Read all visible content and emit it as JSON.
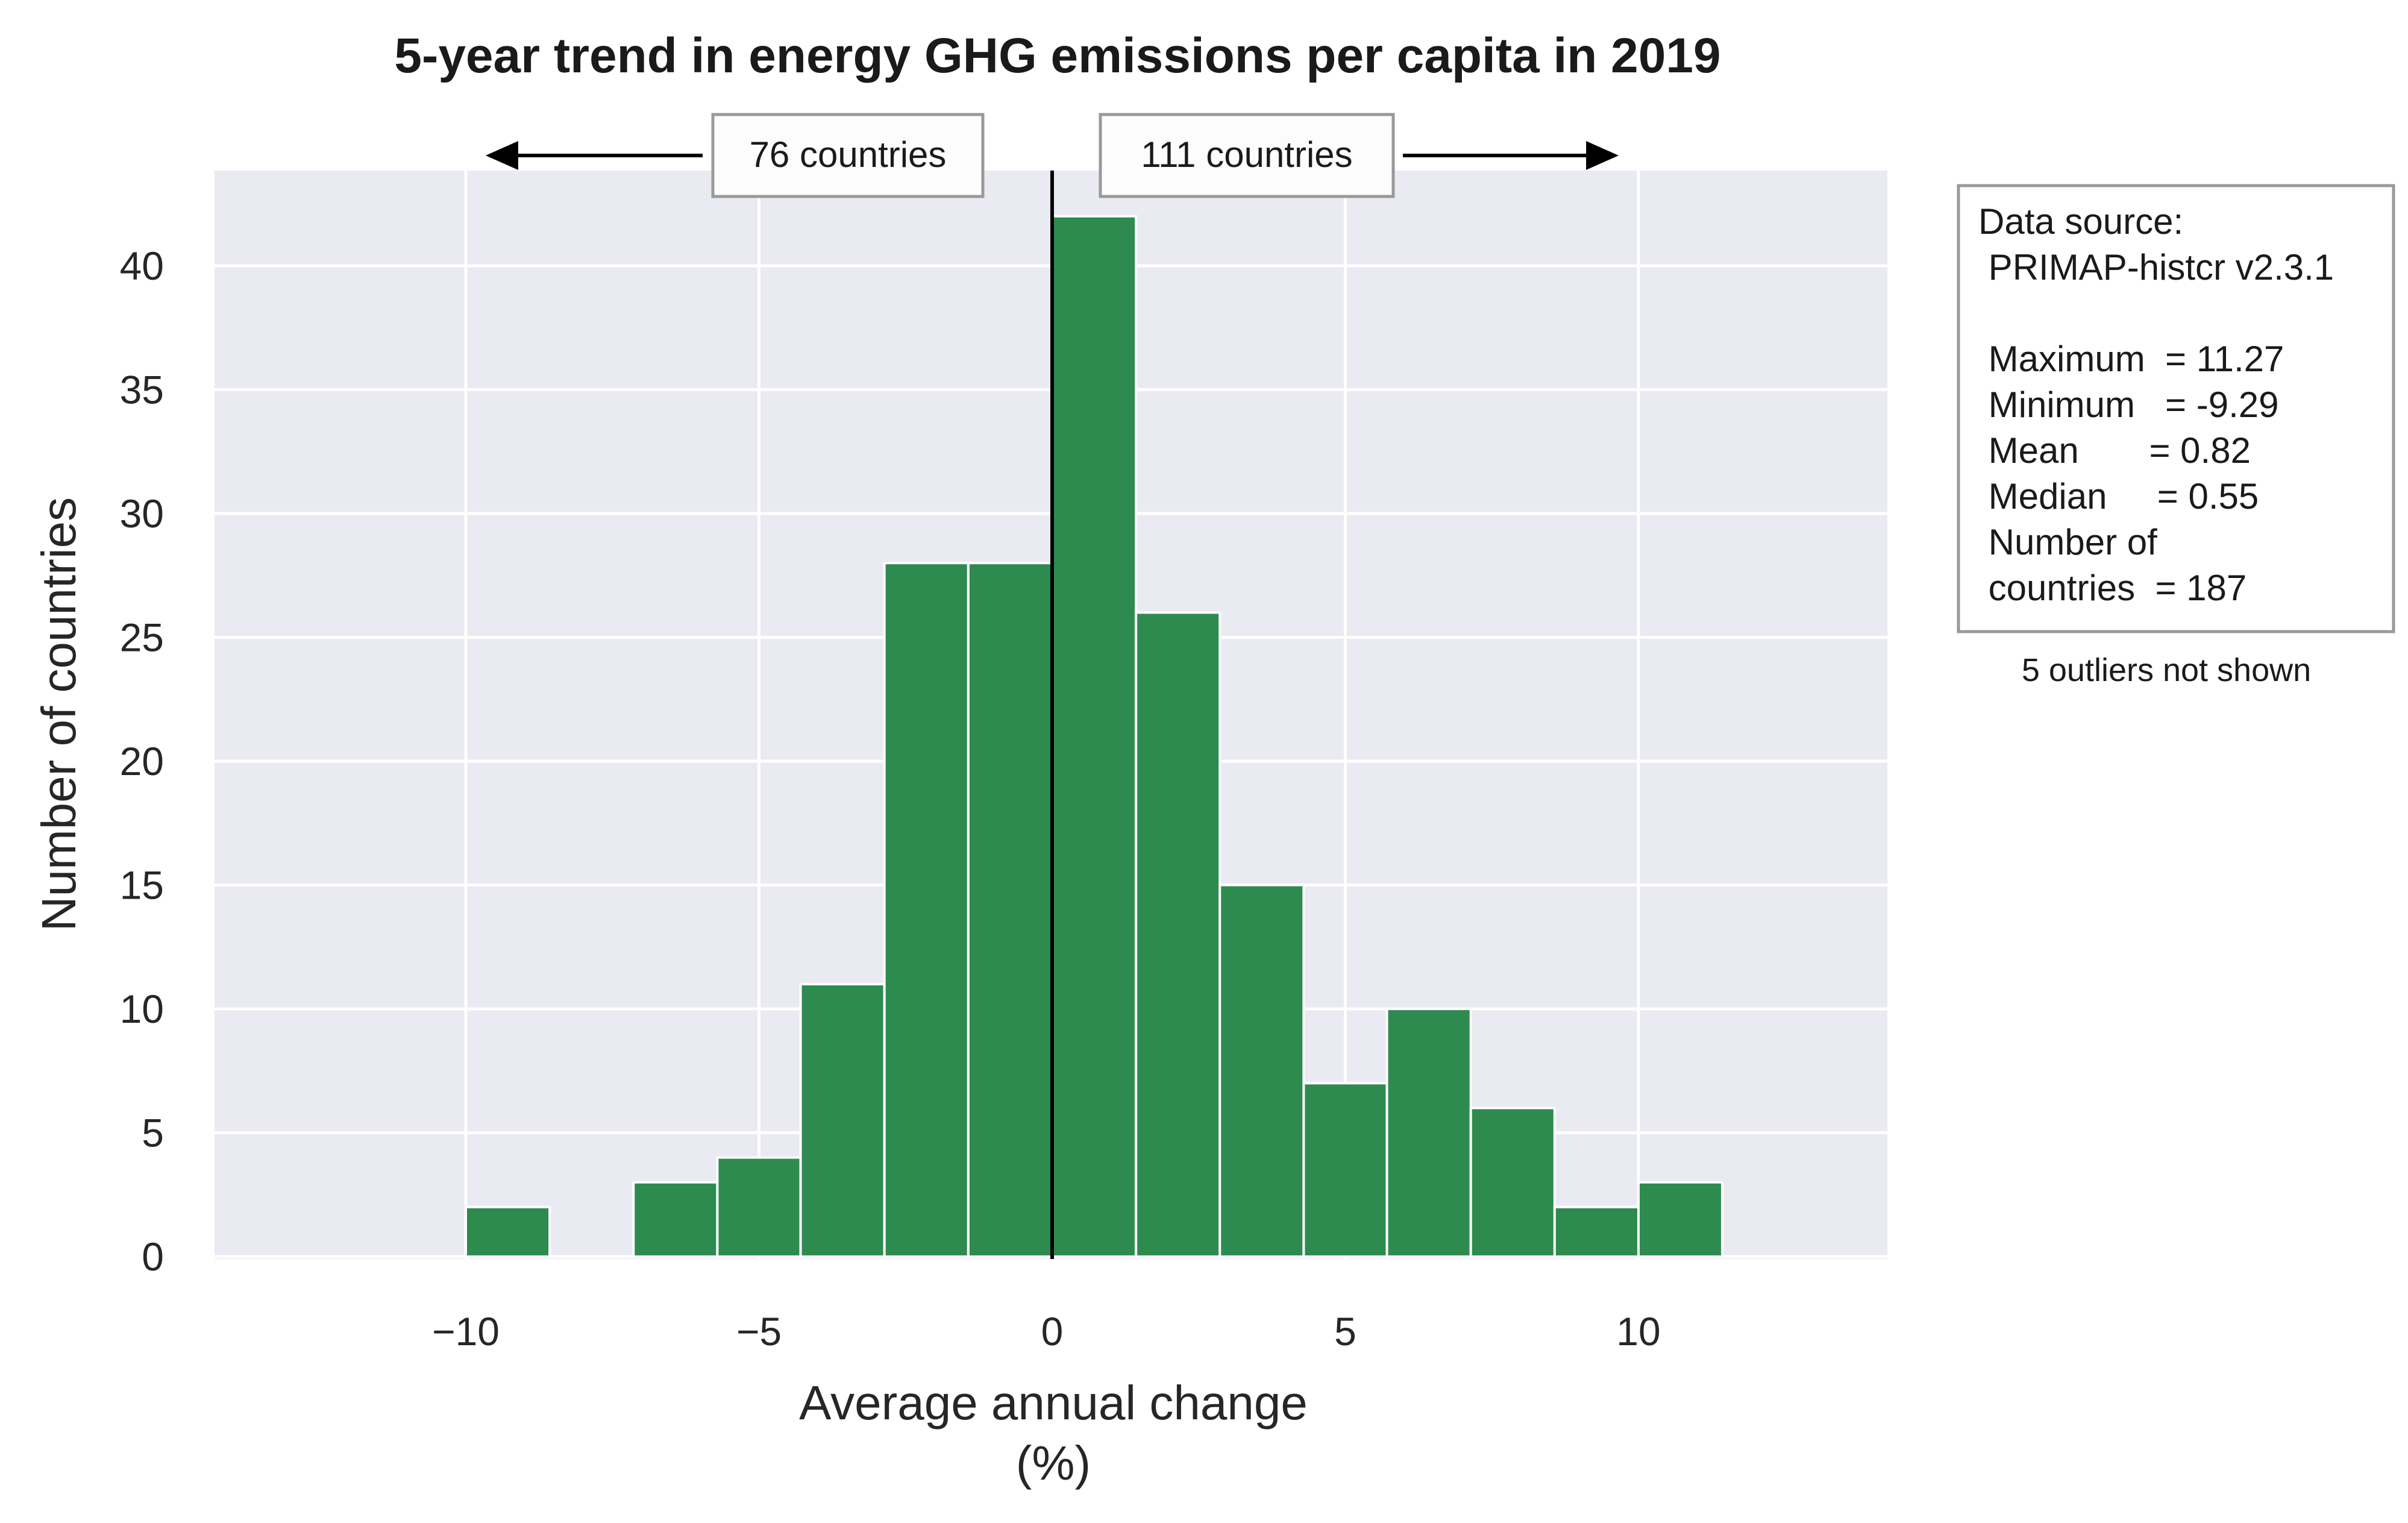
{
  "chart_data": {
    "type": "bar",
    "title": "5-year trend in energy GHG emissions per capita in 2019",
    "xlabel_line1": "Average annual change",
    "xlabel_line2": "(%)",
    "ylabel": "Number of countries",
    "xlim": [
      -14,
      14
    ],
    "ylim": [
      0,
      44
    ],
    "xticks": [
      -10,
      -5,
      0,
      5,
      10
    ],
    "xtick_labels": [
      "−10",
      "−5",
      "0",
      "5",
      "10"
    ],
    "yticks": [
      0,
      5,
      10,
      15,
      20,
      25,
      30,
      35,
      40
    ],
    "bins": [
      {
        "x0": -10.0,
        "x1": -8.57,
        "count": 2
      },
      {
        "x0": -7.14,
        "x1": -5.71,
        "count": 3
      },
      {
        "x0": -5.71,
        "x1": -4.29,
        "count": 4
      },
      {
        "x0": -4.29,
        "x1": -2.86,
        "count": 11
      },
      {
        "x0": -2.86,
        "x1": -1.43,
        "count": 28
      },
      {
        "x0": -1.43,
        "x1": 0.0,
        "count": 28
      },
      {
        "x0": 0.0,
        "x1": 1.43,
        "count": 42
      },
      {
        "x0": 1.43,
        "x1": 2.86,
        "count": 26
      },
      {
        "x0": 2.86,
        "x1": 4.29,
        "count": 15
      },
      {
        "x0": 4.29,
        "x1": 5.71,
        "count": 7
      },
      {
        "x0": 5.71,
        "x1": 7.14,
        "count": 10
      },
      {
        "x0": 7.14,
        "x1": 8.57,
        "count": 6
      },
      {
        "x0": 8.57,
        "x1": 10.0,
        "count": 2
      },
      {
        "x0": 10.0,
        "x1": 11.43,
        "count": 3
      }
    ],
    "bar_color": "#2e8b4f",
    "background_color": "#eaeaf2",
    "grid": true,
    "vertical_line_x": 0,
    "annotations": {
      "left": "76 countries",
      "right": "111 countries",
      "left_arrow_to_x": -9.6,
      "right_arrow_to_x": 9.6
    },
    "stats_box": [
      "Data source:",
      " PRIMAP-histcr v2.3.1",
      "",
      " Maximum  = 11.27",
      " Minimum   = -9.29",
      " Mean       = 0.82",
      " Median     = 0.55",
      " Number of",
      " countries  = 187"
    ],
    "note": "5 outliers not shown"
  }
}
